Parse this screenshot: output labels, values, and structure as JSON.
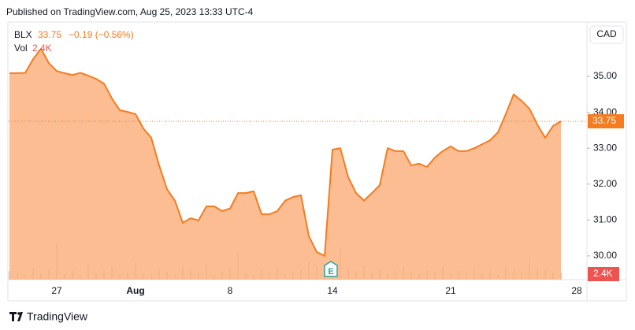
{
  "chart_data": {
    "type": "area",
    "header": "Published on TradingView.com, Aug 25, 2023 13:33 UTC-4",
    "change": "−0.19 (−0.56%)",
    "currency": "CAD",
    "earnings_marker": "E",
    "branding": "TradingView",
    "categories": [
      null,
      null,
      null,
      null,
      null,
      null,
      "27",
      null,
      null,
      null,
      null,
      null,
      null,
      null,
      null,
      null,
      "Aug",
      null,
      null,
      null,
      null,
      null,
      null,
      null,
      null,
      null,
      null,
      null,
      "8",
      null,
      null,
      null,
      null,
      null,
      null,
      null,
      null,
      null,
      null,
      null,
      null,
      "14",
      null,
      null,
      null,
      null,
      null,
      null,
      null,
      null,
      null,
      null,
      null,
      null,
      null,
      null,
      "21",
      null,
      null,
      null,
      null,
      null,
      null,
      null,
      null,
      null,
      null,
      null,
      null,
      null,
      null,
      null,
      "28"
    ],
    "series": [
      {
        "name": "BLX",
        "color": "#f57c1f",
        "fill": "#fbb27f",
        "values": [
          35.09,
          35.09,
          35.1,
          35.48,
          35.77,
          35.37,
          35.15,
          35.09,
          35.04,
          35.1,
          35.02,
          34.93,
          34.8,
          34.39,
          34.06,
          34.01,
          33.95,
          33.55,
          33.29,
          32.52,
          31.86,
          31.54,
          30.92,
          31.05,
          30.99,
          31.38,
          31.38,
          31.25,
          31.32,
          31.75,
          31.75,
          31.8,
          31.16,
          31.16,
          31.25,
          31.54,
          31.64,
          31.69,
          30.55,
          30.11,
          30.0,
          32.96,
          33.0,
          32.19,
          31.75,
          31.54,
          31.75,
          31.97,
          33.0,
          32.92,
          32.92,
          32.52,
          32.57,
          32.48,
          32.74,
          32.92,
          33.05,
          32.92,
          32.92,
          33.0,
          33.11,
          33.22,
          33.44,
          33.95,
          34.5,
          34.32,
          34.1,
          33.66,
          33.29,
          33.62,
          33.75,
          null,
          null
        ]
      }
    ],
    "volume": {
      "name": "Vol",
      "color": "#b7b9c0",
      "label_color": "#ef5350",
      "values": [
        3000,
        2500,
        1800,
        4200,
        2200,
        3500,
        12500,
        2000,
        3100,
        1500,
        5200,
        2400,
        3300,
        4800,
        1700,
        2600,
        6100,
        2100,
        1900,
        3800,
        2700,
        1600,
        4400,
        3000,
        2300,
        5600,
        1800,
        2900,
        3700,
        9800,
        2400,
        1500,
        3300,
        2600,
        4100,
        2000,
        2800,
        3500,
        6200,
        4900,
        3900,
        5400,
        11000,
        4200,
        3000,
        4700,
        2500,
        3600,
        2100,
        3200,
        4500,
        2800,
        1900,
        3400,
        2600,
        5100,
        2300,
        3000,
        2700,
        4000,
        2200,
        3600,
        1800,
        5200,
        3300,
        2900,
        7400,
        4100,
        3100,
        2500,
        2400,
        null,
        null
      ],
      "value_labels": [
        null,
        null,
        null,
        null,
        null,
        null,
        null,
        null,
        null,
        null,
        null,
        null,
        null,
        null,
        null,
        null,
        null,
        null,
        null,
        null,
        null,
        null,
        null,
        null,
        null,
        null,
        null,
        null,
        null,
        null,
        null,
        null,
        null,
        null,
        null,
        null,
        null,
        null,
        null,
        null,
        null,
        null,
        null,
        null,
        null,
        null,
        null,
        null,
        null,
        null,
        null,
        null,
        null,
        null,
        null,
        null,
        null,
        null,
        null,
        null,
        null,
        null,
        null,
        null,
        null,
        null,
        null,
        null,
        null,
        null,
        "2.4K",
        null,
        null
      ]
    },
    "ylim": [
      29.34,
      36.47
    ],
    "yticks": [
      {
        "value": 30,
        "label": "30.00"
      },
      {
        "value": 31,
        "label": "31.00"
      },
      {
        "value": 32,
        "label": "32.00"
      },
      {
        "value": 33,
        "label": "33.00"
      },
      {
        "value": 34,
        "label": "34.00"
      },
      {
        "value": 35,
        "label": "35.00"
      }
    ]
  }
}
